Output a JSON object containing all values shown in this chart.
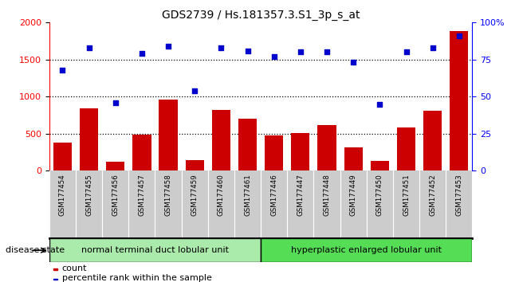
{
  "title": "GDS2739 / Hs.181357.3.S1_3p_s_at",
  "samples": [
    "GSM177454",
    "GSM177455",
    "GSM177456",
    "GSM177457",
    "GSM177458",
    "GSM177459",
    "GSM177460",
    "GSM177461",
    "GSM177446",
    "GSM177447",
    "GSM177448",
    "GSM177449",
    "GSM177450",
    "GSM177451",
    "GSM177452",
    "GSM177453"
  ],
  "counts": [
    380,
    840,
    120,
    490,
    960,
    145,
    820,
    700,
    480,
    510,
    620,
    310,
    130,
    580,
    810,
    1880
  ],
  "percentiles": [
    68,
    83,
    46,
    79,
    84,
    54,
    83,
    81,
    77,
    80,
    80,
    73,
    45,
    80,
    83,
    91
  ],
  "group1_label": "normal terminal duct lobular unit",
  "group1_count": 8,
  "group2_label": "hyperplastic enlarged lobular unit",
  "group2_count": 8,
  "disease_state_label": "disease state",
  "legend_count": "count",
  "legend_percentile": "percentile rank within the sample",
  "bar_color": "#cc0000",
  "dot_color": "#0000cc",
  "group1_color": "#aaeaaa",
  "group2_color": "#55dd55",
  "xticklabel_bg": "#cccccc",
  "ylim_left": [
    0,
    2000
  ],
  "ylim_right": [
    0,
    100
  ],
  "yticks_left": [
    0,
    500,
    1000,
    1500,
    2000
  ],
  "yticks_right": [
    0,
    25,
    50,
    75,
    100
  ],
  "grid_values": [
    500,
    1000,
    1500
  ]
}
